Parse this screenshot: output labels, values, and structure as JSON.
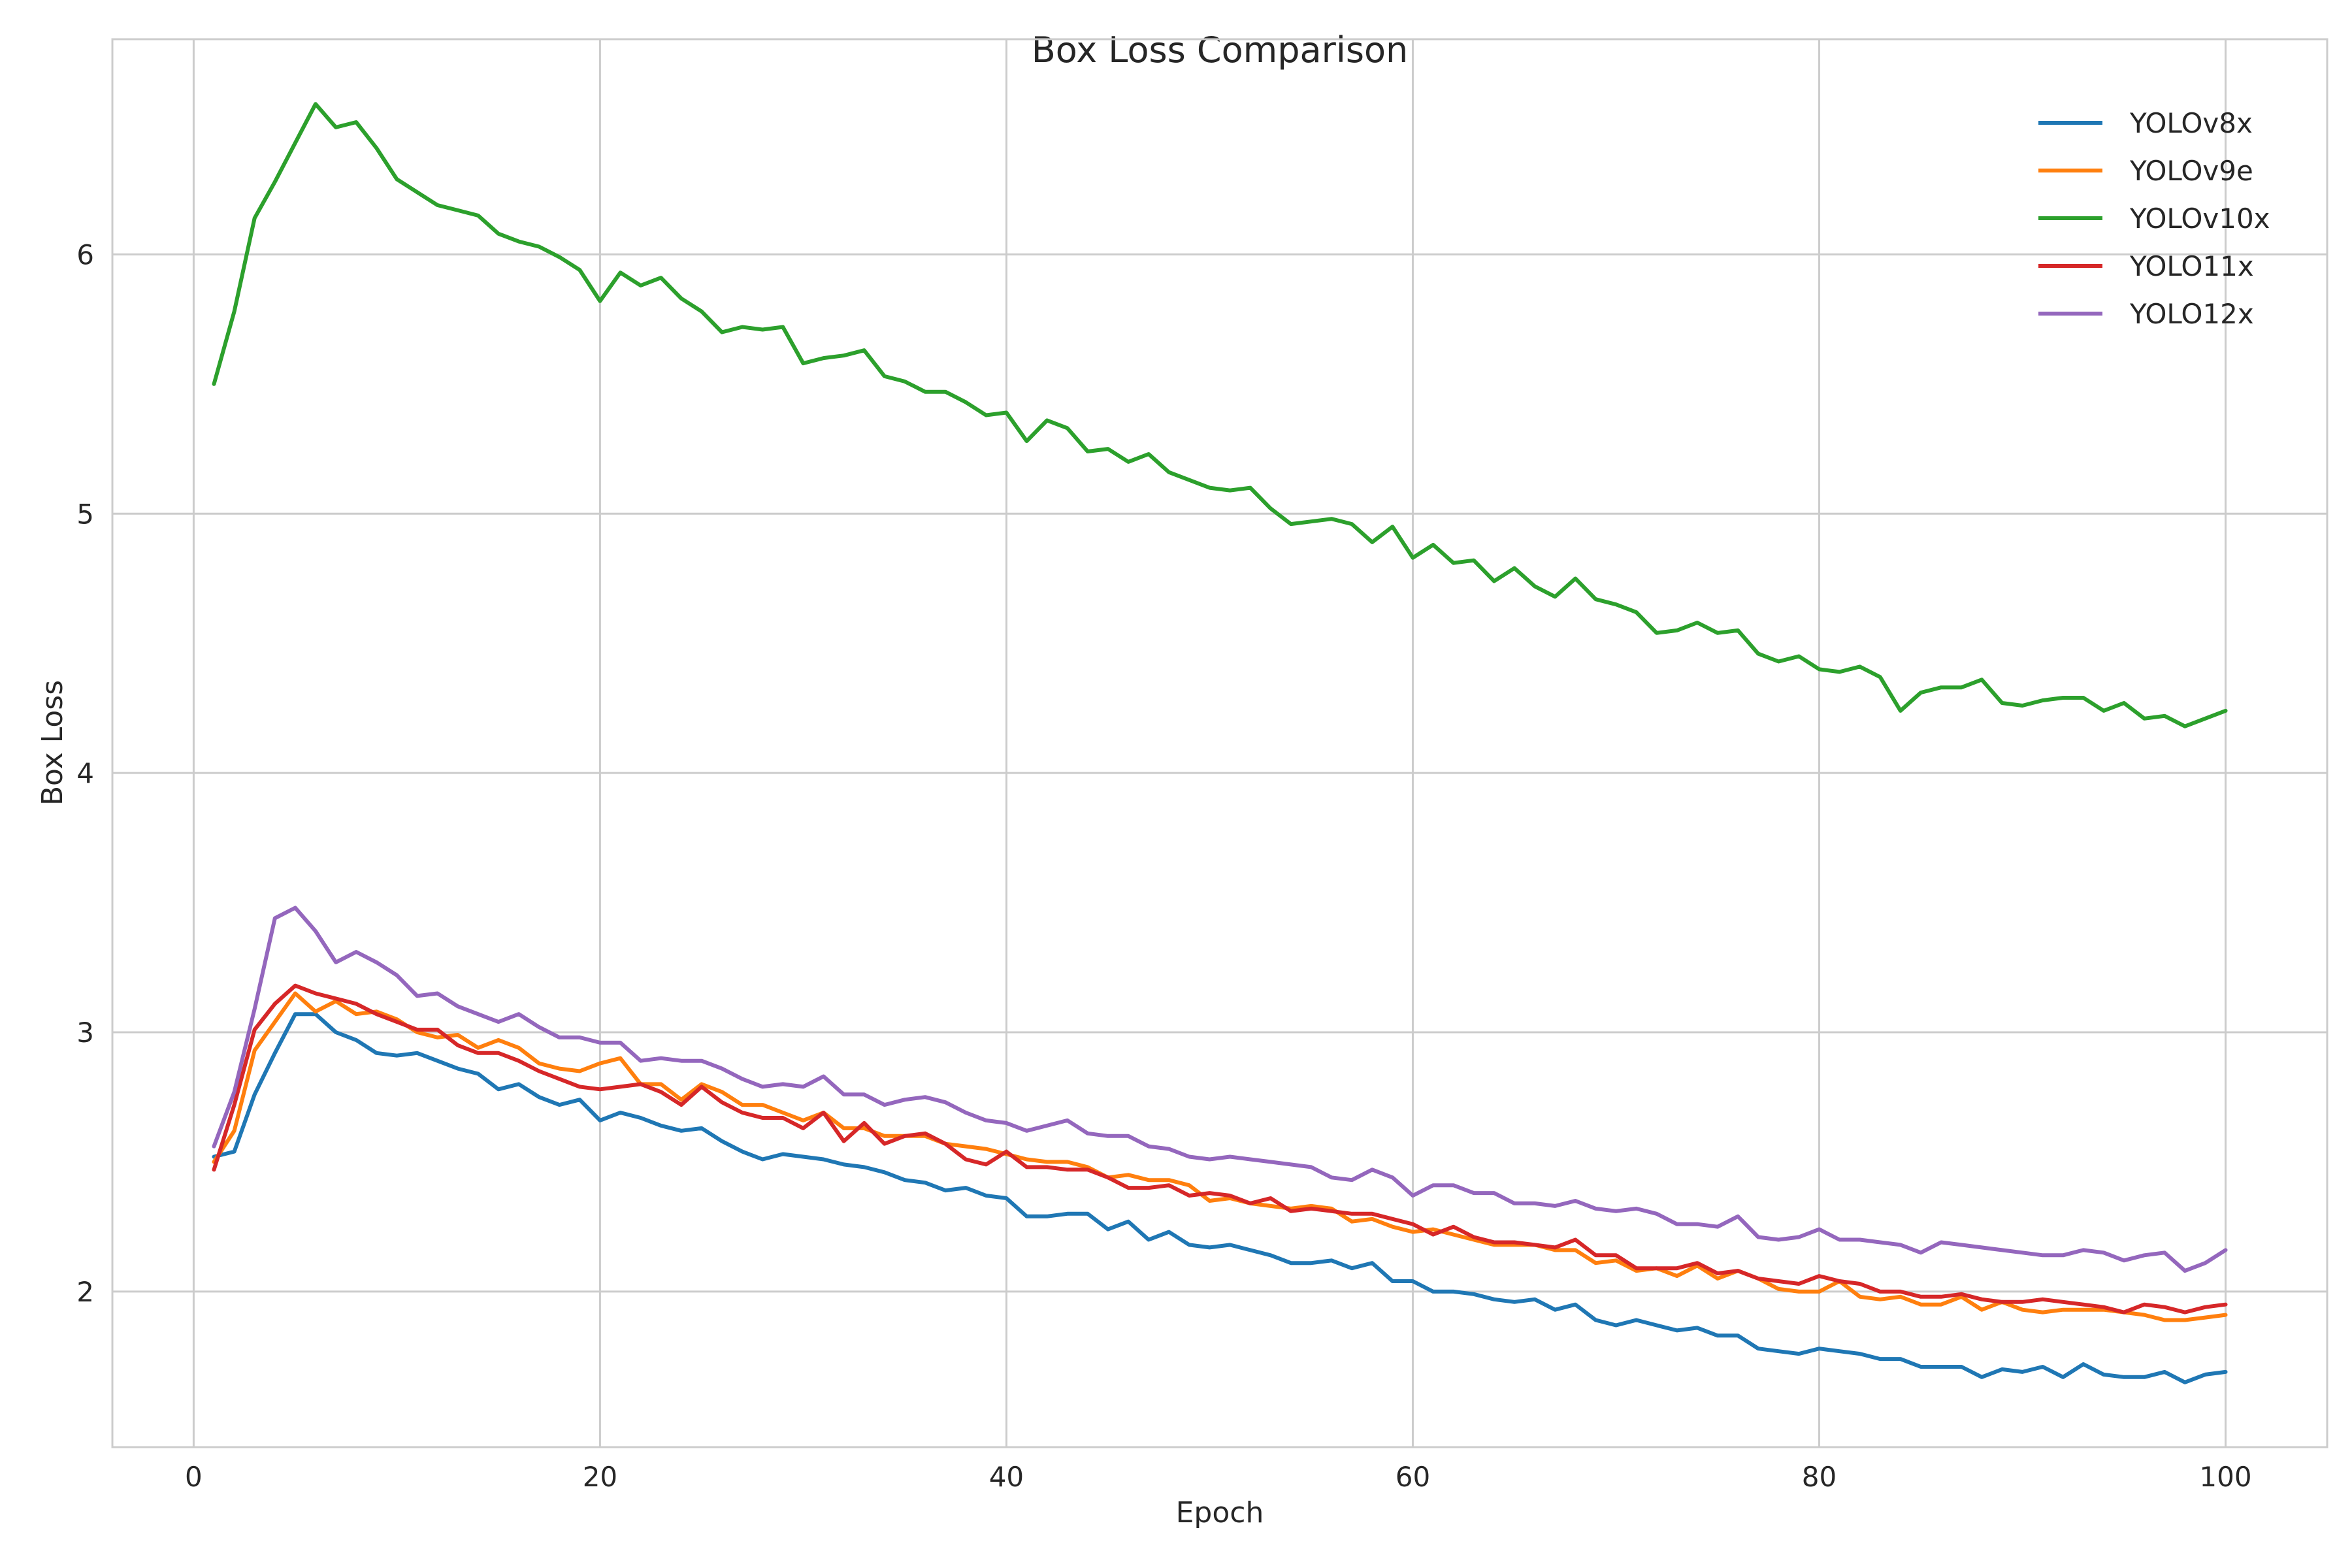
{
  "chart_data": {
    "type": "line",
    "title": "Box Loss Comparison",
    "xlabel": "Epoch",
    "ylabel": "Box Loss",
    "xlim": [
      -4,
      105
    ],
    "ylim": [
      1.4,
      6.83
    ],
    "xticks": [
      0,
      20,
      40,
      60,
      80,
      100
    ],
    "yticks": [
      2,
      3,
      4,
      5,
      6
    ],
    "grid": true,
    "legend": "top-right",
    "x_start": 1,
    "series": [
      {
        "name": "YOLOv8x",
        "color": "#1f77b4",
        "values": [
          2.52,
          2.54,
          2.76,
          2.92,
          3.07,
          3.07,
          3.0,
          2.97,
          2.92,
          2.91,
          2.92,
          2.89,
          2.86,
          2.84,
          2.78,
          2.8,
          2.75,
          2.72,
          2.74,
          2.66,
          2.69,
          2.67,
          2.64,
          2.62,
          2.63,
          2.58,
          2.54,
          2.51,
          2.53,
          2.52,
          2.51,
          2.49,
          2.48,
          2.46,
          2.43,
          2.42,
          2.39,
          2.4,
          2.37,
          2.36,
          2.29,
          2.29,
          2.3,
          2.3,
          2.24,
          2.27,
          2.2,
          2.23,
          2.18,
          2.17,
          2.18,
          2.16,
          2.14,
          2.11,
          2.11,
          2.12,
          2.09,
          2.11,
          2.04,
          2.04,
          2.0,
          2.0,
          1.99,
          1.97,
          1.96,
          1.97,
          1.93,
          1.95,
          1.89,
          1.87,
          1.89,
          1.87,
          1.85,
          1.86,
          1.83,
          1.83,
          1.78,
          1.77,
          1.76,
          1.78,
          1.77,
          1.76,
          1.74,
          1.74,
          1.71,
          1.71,
          1.71,
          1.67,
          1.7,
          1.69,
          1.71,
          1.67,
          1.72,
          1.68,
          1.67,
          1.67,
          1.69,
          1.65,
          1.68,
          1.69
        ]
      },
      {
        "name": "YOLOv9e",
        "color": "#ff7f0e",
        "values": [
          2.5,
          2.62,
          2.93,
          3.04,
          3.15,
          3.08,
          3.12,
          3.07,
          3.08,
          3.05,
          3.0,
          2.98,
          2.99,
          2.94,
          2.97,
          2.94,
          2.88,
          2.86,
          2.85,
          2.88,
          2.9,
          2.8,
          2.8,
          2.74,
          2.8,
          2.77,
          2.72,
          2.72,
          2.69,
          2.66,
          2.69,
          2.63,
          2.63,
          2.6,
          2.6,
          2.6,
          2.57,
          2.56,
          2.55,
          2.53,
          2.51,
          2.5,
          2.5,
          2.48,
          2.44,
          2.45,
          2.43,
          2.43,
          2.41,
          2.35,
          2.36,
          2.34,
          2.33,
          2.32,
          2.33,
          2.32,
          2.27,
          2.28,
          2.25,
          2.23,
          2.24,
          2.22,
          2.2,
          2.18,
          2.18,
          2.18,
          2.16,
          2.16,
          2.11,
          2.12,
          2.08,
          2.09,
          2.06,
          2.1,
          2.05,
          2.08,
          2.05,
          2.01,
          2.0,
          2.0,
          2.04,
          1.98,
          1.97,
          1.98,
          1.95,
          1.95,
          1.98,
          1.93,
          1.96,
          1.93,
          1.92,
          1.93,
          1.93,
          1.93,
          1.92,
          1.91,
          1.89,
          1.89,
          1.9,
          1.91
        ]
      },
      {
        "name": "YOLOv10x",
        "color": "#2ca02c",
        "values": [
          5.5,
          5.78,
          6.14,
          6.28,
          6.43,
          6.58,
          6.49,
          6.51,
          6.41,
          6.29,
          6.24,
          6.19,
          6.17,
          6.15,
          6.08,
          6.05,
          6.03,
          5.99,
          5.94,
          5.82,
          5.93,
          5.88,
          5.91,
          5.83,
          5.78,
          5.7,
          5.72,
          5.71,
          5.72,
          5.58,
          5.6,
          5.61,
          5.63,
          5.53,
          5.51,
          5.47,
          5.47,
          5.43,
          5.38,
          5.39,
          5.28,
          5.36,
          5.33,
          5.24,
          5.25,
          5.2,
          5.23,
          5.16,
          5.13,
          5.1,
          5.09,
          5.1,
          5.02,
          4.96,
          4.97,
          4.98,
          4.96,
          4.89,
          4.95,
          4.83,
          4.88,
          4.81,
          4.82,
          4.74,
          4.79,
          4.72,
          4.68,
          4.75,
          4.67,
          4.65,
          4.62,
          4.54,
          4.55,
          4.58,
          4.54,
          4.55,
          4.46,
          4.43,
          4.45,
          4.4,
          4.39,
          4.41,
          4.37,
          4.24,
          4.31,
          4.33,
          4.33,
          4.36,
          4.27,
          4.26,
          4.28,
          4.29,
          4.29,
          4.24,
          4.27,
          4.21,
          4.22,
          4.18,
          4.21,
          4.24
        ]
      },
      {
        "name": "YOLO11x",
        "color": "#d62728",
        "values": [
          2.47,
          2.72,
          3.01,
          3.11,
          3.18,
          3.15,
          3.13,
          3.11,
          3.07,
          3.04,
          3.01,
          3.01,
          2.95,
          2.92,
          2.92,
          2.89,
          2.85,
          2.82,
          2.79,
          2.78,
          2.79,
          2.8,
          2.77,
          2.72,
          2.79,
          2.73,
          2.69,
          2.67,
          2.67,
          2.63,
          2.69,
          2.58,
          2.65,
          2.57,
          2.6,
          2.61,
          2.57,
          2.51,
          2.49,
          2.54,
          2.48,
          2.48,
          2.47,
          2.47,
          2.44,
          2.4,
          2.4,
          2.41,
          2.37,
          2.38,
          2.37,
          2.34,
          2.36,
          2.31,
          2.32,
          2.31,
          2.3,
          2.3,
          2.28,
          2.26,
          2.22,
          2.25,
          2.21,
          2.19,
          2.19,
          2.18,
          2.17,
          2.2,
          2.14,
          2.14,
          2.09,
          2.09,
          2.09,
          2.11,
          2.07,
          2.08,
          2.05,
          2.04,
          2.03,
          2.06,
          2.04,
          2.03,
          2.0,
          2.0,
          1.98,
          1.98,
          1.99,
          1.97,
          1.96,
          1.96,
          1.97,
          1.96,
          1.95,
          1.94,
          1.92,
          1.95,
          1.94,
          1.92,
          1.94,
          1.95
        ]
      },
      {
        "name": "YOLO12x",
        "color": "#9467bd",
        "values": [
          2.56,
          2.77,
          3.09,
          3.44,
          3.48,
          3.39,
          3.27,
          3.31,
          3.27,
          3.22,
          3.14,
          3.15,
          3.1,
          3.07,
          3.04,
          3.07,
          3.02,
          2.98,
          2.98,
          2.96,
          2.96,
          2.89,
          2.9,
          2.89,
          2.89,
          2.86,
          2.82,
          2.79,
          2.8,
          2.79,
          2.83,
          2.76,
          2.76,
          2.72,
          2.74,
          2.75,
          2.73,
          2.69,
          2.66,
          2.65,
          2.62,
          2.64,
          2.66,
          2.61,
          2.6,
          2.6,
          2.56,
          2.55,
          2.52,
          2.51,
          2.52,
          2.51,
          2.5,
          2.49,
          2.48,
          2.44,
          2.43,
          2.47,
          2.44,
          2.37,
          2.41,
          2.41,
          2.38,
          2.38,
          2.34,
          2.34,
          2.33,
          2.35,
          2.32,
          2.31,
          2.32,
          2.3,
          2.26,
          2.26,
          2.25,
          2.29,
          2.21,
          2.2,
          2.21,
          2.24,
          2.2,
          2.2,
          2.19,
          2.18,
          2.15,
          2.19,
          2.18,
          2.17,
          2.16,
          2.15,
          2.14,
          2.14,
          2.16,
          2.15,
          2.12,
          2.14,
          2.15,
          2.08,
          2.11,
          2.16
        ]
      }
    ]
  }
}
